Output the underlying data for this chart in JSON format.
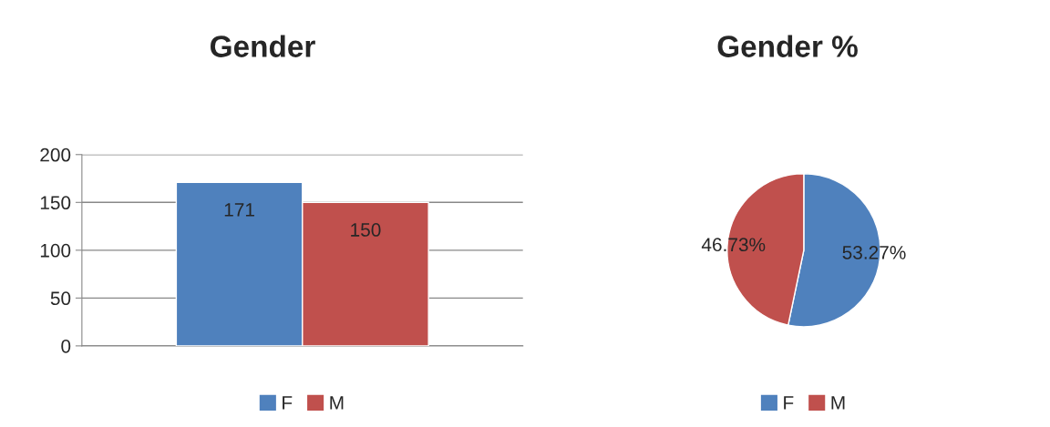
{
  "chart_data": [
    {
      "type": "bar",
      "title": "Gender",
      "categories": [
        null
      ],
      "series": [
        {
          "name": "F",
          "color": "#4f81bd",
          "values": [
            171
          ]
        },
        {
          "name": "M",
          "color": "#c0504d",
          "values": [
            150
          ]
        }
      ],
      "ylim": [
        0,
        200
      ],
      "yticks": [
        0,
        50,
        100,
        150,
        200
      ],
      "grid": "y",
      "data_labels": true,
      "legend": "bottom"
    },
    {
      "type": "pie",
      "title": "Gender %",
      "categories": [
        "F",
        "M"
      ],
      "values": [
        53.27,
        46.73
      ],
      "colors": [
        "#4f81bd",
        "#c0504d"
      ],
      "value_labels": [
        "53.27%",
        "46.73%"
      ],
      "legend": "bottom"
    }
  ]
}
